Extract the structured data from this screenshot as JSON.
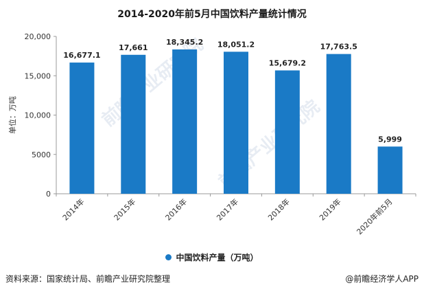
{
  "title": "2014-2020年前5月中国饮料产量统计情况",
  "watermark_text": "前瞻产业研究院",
  "legend": {
    "label": "中国饮料产量（万吨）"
  },
  "source": "资料来源：国家统计局、前瞻产业研究院整理",
  "credit": "@前瞻经济学人APP",
  "colors": {
    "bar": "#1a7ac6",
    "axis": "#999999",
    "text": "#333333"
  },
  "chart_data": {
    "type": "bar",
    "title": "2014-2020年前5月中国饮料产量统计情况",
    "xlabel": "",
    "ylabel": "单位：万吨",
    "categories": [
      "2014年",
      "2015年",
      "2016年",
      "2017年",
      "2018年",
      "2019年",
      "2020年前5月"
    ],
    "series": [
      {
        "name": "中国饮料产量（万吨）",
        "values": [
          16677.1,
          17661,
          18345.2,
          18051.2,
          15679.2,
          17763.5,
          5999
        ],
        "labels": [
          "16,677.1",
          "17,661",
          "18,345.2",
          "18,051.2",
          "15,679.2",
          "17,763.5",
          "5,999"
        ]
      }
    ],
    "ylim": [
      0,
      20000
    ],
    "yticks": [
      0,
      5000,
      10000,
      15000,
      20000
    ],
    "ytick_labels": [
      "0",
      "5000",
      "10,000",
      "15,000",
      "20,000"
    ],
    "grid": false,
    "legend_position": "bottom"
  }
}
